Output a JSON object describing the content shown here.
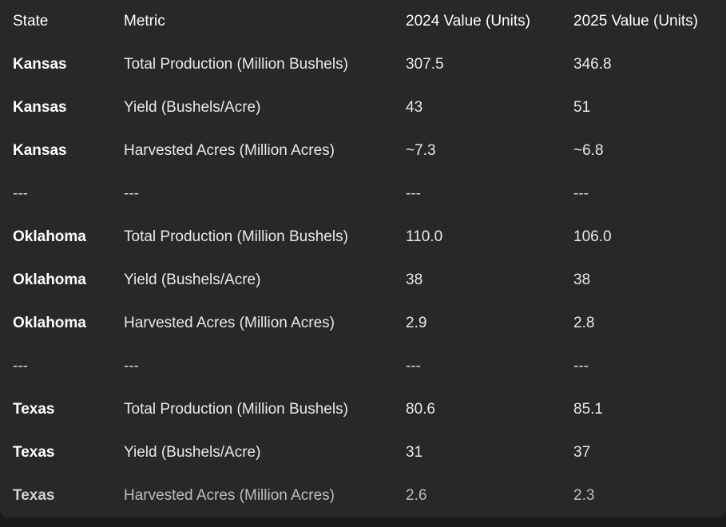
{
  "table": {
    "headers": [
      "State",
      "Metric",
      "2024 Value (Units)",
      "2025 Value (Units)"
    ],
    "rows": [
      [
        "Kansas",
        "Total Production (Million Bushels)",
        "307.5",
        "346.8"
      ],
      [
        "Kansas",
        "Yield (Bushels/Acre)",
        "43",
        "51"
      ],
      [
        "Kansas",
        "Harvested Acres (Million Acres)",
        "~7.3",
        "~6.8"
      ],
      [
        "---",
        "---",
        "---",
        "---"
      ],
      [
        "Oklahoma",
        "Total Production (Million Bushels)",
        "110.0",
        "106.0"
      ],
      [
        "Oklahoma",
        "Yield (Bushels/Acre)",
        "38",
        "38"
      ],
      [
        "Oklahoma",
        "Harvested Acres (Million Acres)",
        "2.9",
        "2.8"
      ],
      [
        "---",
        "---",
        "---",
        "---"
      ],
      [
        "Texas",
        "Total Production (Million Bushels)",
        "80.6",
        "85.1"
      ],
      [
        "Texas",
        "Yield (Bushels/Acre)",
        "31",
        "37"
      ],
      [
        "Texas",
        "Harvested Acres (Million Acres)",
        "2.6",
        "2.3"
      ]
    ]
  },
  "colors": {
    "page_background": "#1b1b1b",
    "card_background": "#282828",
    "text": "#e8e8e8"
  }
}
